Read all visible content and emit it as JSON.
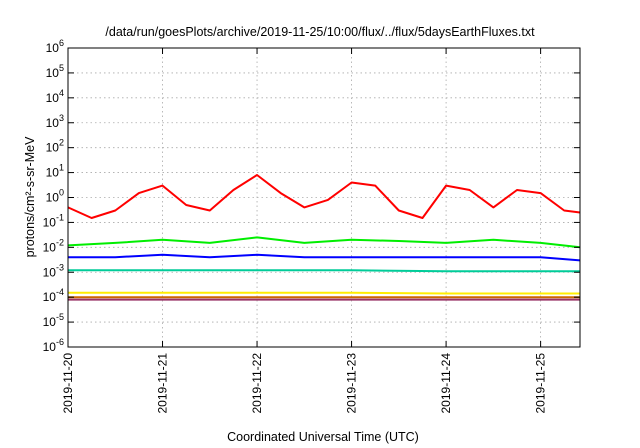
{
  "chart_data": {
    "type": "line",
    "title": "/data/run/goesPlots/archive/2019-11-25/10:00/flux/../flux/5daysEarthFluxes.txt",
    "xlabel": "Coordinated Universal Time (UTC)",
    "ylabel": "protons/cm²-s-sr-MeV",
    "y_scale": "log",
    "ylim": [
      1e-06,
      1000000.0
    ],
    "y_ticks": [
      {
        "value": 1e-06,
        "base": "10",
        "exp": "-6"
      },
      {
        "value": 1e-05,
        "base": "10",
        "exp": "-5"
      },
      {
        "value": 0.0001,
        "base": "10",
        "exp": "-4"
      },
      {
        "value": 0.001,
        "base": "10",
        "exp": "-3"
      },
      {
        "value": 0.01,
        "base": "10",
        "exp": "-2"
      },
      {
        "value": 0.1,
        "base": "10",
        "exp": "-1"
      },
      {
        "value": 1,
        "base": "10",
        "exp": "0"
      },
      {
        "value": 10.0,
        "base": "10",
        "exp": "1"
      },
      {
        "value": 100.0,
        "base": "10",
        "exp": "2"
      },
      {
        "value": 1000.0,
        "base": "10",
        "exp": "3"
      },
      {
        "value": 10000.0,
        "base": "10",
        "exp": "4"
      },
      {
        "value": 100000.0,
        "base": "10",
        "exp": "5"
      },
      {
        "value": 1000000.0,
        "base": "10",
        "exp": "6"
      }
    ],
    "xlim": [
      "2019-11-20T00:00",
      "2019-11-25T10:00"
    ],
    "x_ticks": [
      "2019-11-20",
      "2019-11-21",
      "2019-11-22",
      "2019-11-23",
      "2019-11-24",
      "2019-11-25"
    ],
    "grid": true,
    "legend": "none",
    "series": [
      {
        "color": "#ff0000",
        "x": [
          "2019-11-20T00:00",
          "2019-11-20T06:00",
          "2019-11-20T12:00",
          "2019-11-20T18:00",
          "2019-11-21T00:00",
          "2019-11-21T06:00",
          "2019-11-21T12:00",
          "2019-11-21T18:00",
          "2019-11-22T00:00",
          "2019-11-22T06:00",
          "2019-11-22T12:00",
          "2019-11-22T18:00",
          "2019-11-23T00:00",
          "2019-11-23T06:00",
          "2019-11-23T12:00",
          "2019-11-23T18:00",
          "2019-11-24T00:00",
          "2019-11-24T06:00",
          "2019-11-24T12:00",
          "2019-11-24T18:00",
          "2019-11-25T00:00",
          "2019-11-25T06:00",
          "2019-11-25T10:00"
        ],
        "values": [
          0.4,
          0.15,
          0.3,
          1.5,
          3,
          0.5,
          0.3,
          2,
          8,
          1.5,
          0.4,
          0.8,
          4,
          3,
          0.3,
          0.15,
          3,
          2,
          0.4,
          2,
          1.5,
          0.3,
          0.25
        ]
      },
      {
        "color": "#00ee00",
        "x": [
          "2019-11-20T00:00",
          "2019-11-20T12:00",
          "2019-11-21T00:00",
          "2019-11-21T12:00",
          "2019-11-22T00:00",
          "2019-11-22T12:00",
          "2019-11-23T00:00",
          "2019-11-23T12:00",
          "2019-11-24T00:00",
          "2019-11-24T12:00",
          "2019-11-25T00:00",
          "2019-11-25T10:00"
        ],
        "values": [
          0.012,
          0.015,
          0.02,
          0.015,
          0.025,
          0.015,
          0.02,
          0.018,
          0.015,
          0.02,
          0.015,
          0.01
        ]
      },
      {
        "color": "#0000ff",
        "x": [
          "2019-11-20T00:00",
          "2019-11-20T12:00",
          "2019-11-21T00:00",
          "2019-11-21T12:00",
          "2019-11-22T00:00",
          "2019-11-22T12:00",
          "2019-11-23T00:00",
          "2019-11-23T12:00",
          "2019-11-24T00:00",
          "2019-11-24T12:00",
          "2019-11-25T00:00",
          "2019-11-25T10:00"
        ],
        "values": [
          0.004,
          0.004,
          0.005,
          0.004,
          0.005,
          0.004,
          0.004,
          0.004,
          0.004,
          0.004,
          0.004,
          0.003
        ]
      },
      {
        "color": "#00cc99",
        "x": [
          "2019-11-20T00:00",
          "2019-11-21T00:00",
          "2019-11-22T00:00",
          "2019-11-23T00:00",
          "2019-11-24T00:00",
          "2019-11-25T00:00",
          "2019-11-25T10:00"
        ],
        "values": [
          0.0012,
          0.0012,
          0.0012,
          0.0012,
          0.0011,
          0.0011,
          0.0011
        ]
      },
      {
        "color": "#ffee00",
        "x": [
          "2019-11-20T00:00",
          "2019-11-21T00:00",
          "2019-11-22T00:00",
          "2019-11-23T00:00",
          "2019-11-24T00:00",
          "2019-11-25T00:00",
          "2019-11-25T10:00"
        ],
        "values": [
          0.00015,
          0.00015,
          0.00015,
          0.00015,
          0.00014,
          0.00014,
          0.00014
        ]
      },
      {
        "color": "#cc6600",
        "x": [
          "2019-11-20T00:00",
          "2019-11-21T00:00",
          "2019-11-22T00:00",
          "2019-11-23T00:00",
          "2019-11-24T00:00",
          "2019-11-25T00:00",
          "2019-11-25T10:00"
        ],
        "values": [
          0.0001,
          0.0001,
          0.0001,
          0.0001,
          0.0001,
          0.0001,
          0.0001
        ]
      },
      {
        "color": "#993366",
        "x": [
          "2019-11-20T00:00",
          "2019-11-21T00:00",
          "2019-11-22T00:00",
          "2019-11-23T00:00",
          "2019-11-24T00:00",
          "2019-11-25T00:00",
          "2019-11-25T10:00"
        ],
        "values": [
          8e-05,
          8e-05,
          8e-05,
          8e-05,
          8e-05,
          8e-05,
          8e-05
        ]
      }
    ]
  }
}
